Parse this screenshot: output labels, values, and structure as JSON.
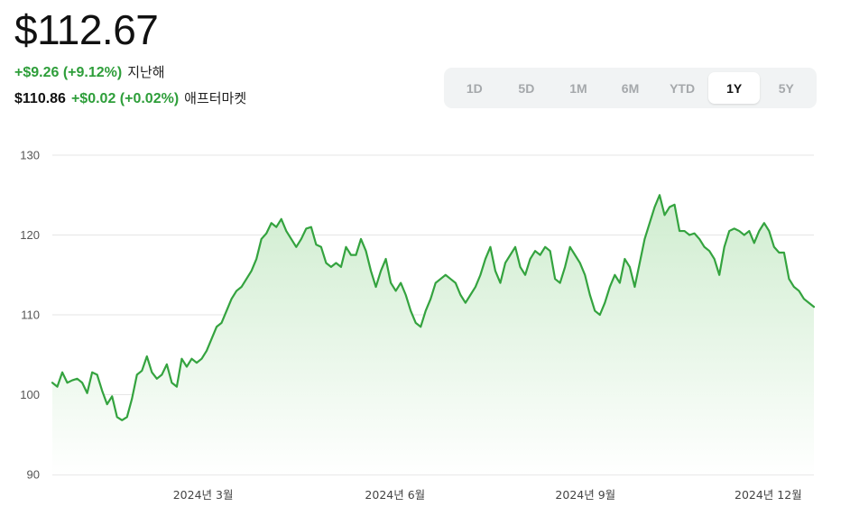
{
  "header": {
    "price": "$112.67",
    "change": "+$9.26 (+9.12%)",
    "change_period": "지난해",
    "after_price": "$110.86",
    "after_change": "+$0.02 (+0.02%)",
    "after_label": "애프터마켓"
  },
  "ranges": [
    {
      "label": "1D",
      "active": false
    },
    {
      "label": "5D",
      "active": false
    },
    {
      "label": "1M",
      "active": false
    },
    {
      "label": "6M",
      "active": false
    },
    {
      "label": "YTD",
      "active": false
    },
    {
      "label": "1Y",
      "active": true
    },
    {
      "label": "5Y",
      "active": false
    }
  ],
  "colors": {
    "line": "#34a33f",
    "fill_top": "#cdeccd",
    "accent_text": "#2e9e3a",
    "grid": "#e6e6e6"
  },
  "chart_data": {
    "type": "area",
    "title": "",
    "xlabel": "",
    "ylabel": "",
    "ylim": [
      90,
      130
    ],
    "y_ticks": [
      90,
      100,
      110,
      120,
      130
    ],
    "x_ticks": [
      {
        "label": "2024년 3월",
        "pos": 0.198
      },
      {
        "label": "2024년 6월",
        "pos": 0.45
      },
      {
        "label": "2024년 9월",
        "pos": 0.7
      },
      {
        "label": "2024년 12월",
        "pos": 0.94
      }
    ],
    "grid": true,
    "series": [
      {
        "values": [
          101.5,
          101,
          102.8,
          101.5,
          101.8,
          102,
          101.5,
          100.2,
          102.8,
          102.5,
          100.5,
          98.8,
          99.8,
          97.2,
          96.8,
          97.2,
          99.5,
          102.5,
          103,
          104.8,
          102.8,
          102,
          102.5,
          103.8,
          101.5,
          101,
          104.5,
          103.5,
          104.5,
          104,
          104.5,
          105.5,
          107,
          108.5,
          109,
          110.5,
          112,
          113,
          113.5,
          114.5,
          115.5,
          117,
          119.5,
          120.2,
          121.5,
          121,
          122,
          120.5,
          119.5,
          118.5,
          119.5,
          120.8,
          121,
          118.8,
          118.5,
          116.5,
          116,
          116.5,
          116,
          118.5,
          117.5,
          117.5,
          119.5,
          118,
          115.5,
          113.5,
          115.5,
          117,
          114,
          113,
          114,
          112.5,
          110.5,
          109,
          108.5,
          110.5,
          112,
          114,
          114.5,
          115,
          114.5,
          114,
          112.5,
          111.5,
          112.5,
          113.5,
          115,
          117,
          118.5,
          115.5,
          114,
          116.5,
          117.5,
          118.5,
          116,
          115,
          117,
          118,
          117.5,
          118.5,
          118,
          114.5,
          114,
          116,
          118.5,
          117.5,
          116.5,
          115,
          112.5,
          110.5,
          110,
          111.5,
          113.5,
          115,
          114,
          117,
          116,
          113.5,
          116.5,
          119.5,
          121.5,
          123.5,
          125,
          122.5,
          123.5,
          123.8,
          120.5,
          120.5,
          120,
          120.2,
          119.5,
          118.5,
          118,
          117,
          115,
          118.5,
          120.5,
          120.8,
          120.5,
          120,
          120.5,
          119,
          120.5,
          121.5,
          120.5,
          118.5,
          117.8,
          117.8,
          114.5,
          113.5,
          113,
          112,
          111.5,
          111
        ]
      }
    ]
  }
}
